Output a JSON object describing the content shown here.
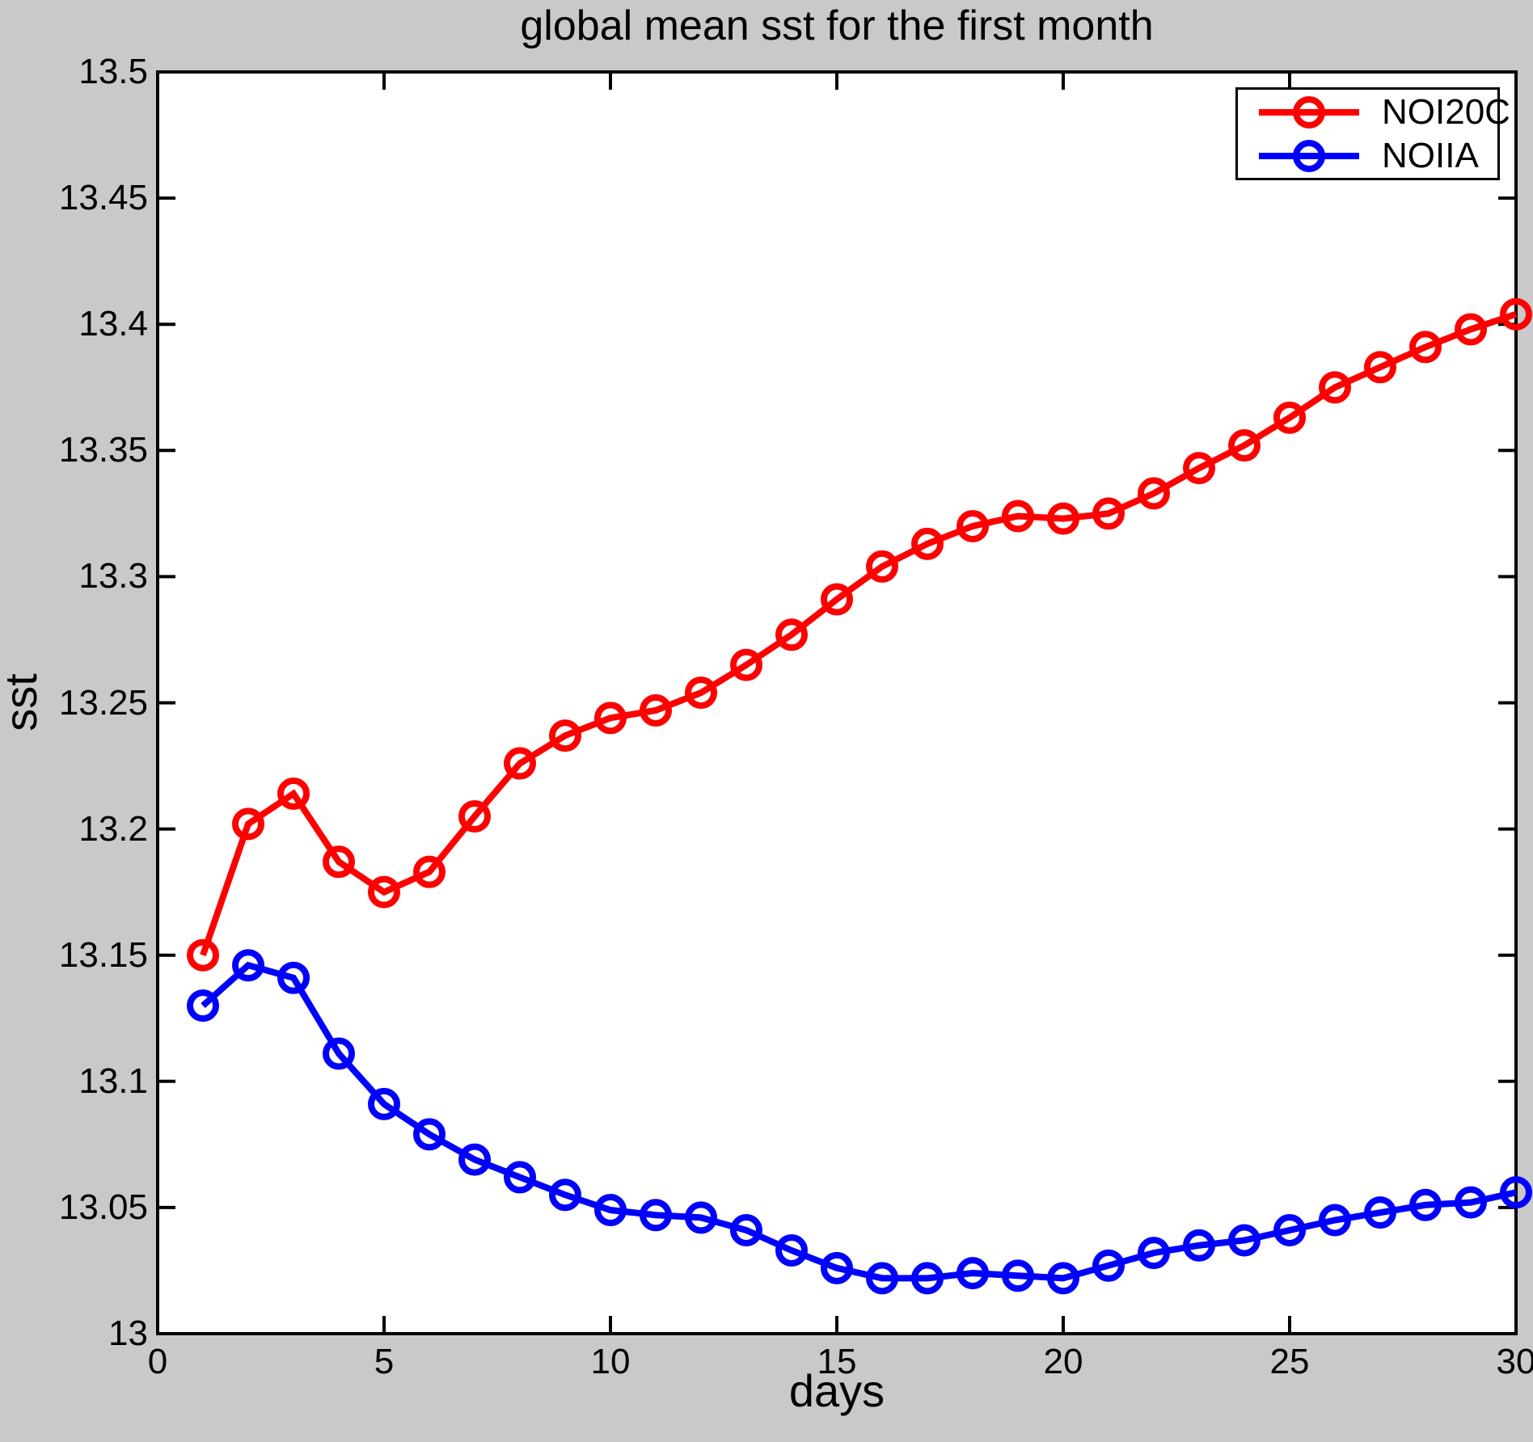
{
  "figure": {
    "background_color": "#c9c9c9",
    "plot_background_color": "#ffffff",
    "axis_color": "#000000"
  },
  "chart_data": {
    "type": "line",
    "title": "global mean sst for the first month",
    "xlabel": "days",
    "ylabel": "sst",
    "xlim": [
      0,
      30
    ],
    "ylim": [
      13,
      13.5
    ],
    "xticks": [
      0,
      5,
      10,
      15,
      20,
      25,
      30
    ],
    "xtick_labels": [
      "0",
      "5",
      "10",
      "15",
      "20",
      "25",
      "30"
    ],
    "yticks": [
      13,
      13.05,
      13.1,
      13.15,
      13.2,
      13.25,
      13.3,
      13.35,
      13.4,
      13.45,
      13.5
    ],
    "ytick_labels": [
      "13",
      "13.05",
      "13.1",
      "13.15",
      "13.2",
      "13.25",
      "13.3",
      "13.35",
      "13.4",
      "13.45",
      "13.5"
    ],
    "grid": false,
    "legend_position": "top-right",
    "marker": "o",
    "x": [
      1,
      2,
      3,
      4,
      5,
      6,
      7,
      8,
      9,
      10,
      11,
      12,
      13,
      14,
      15,
      16,
      17,
      18,
      19,
      20,
      21,
      22,
      23,
      24,
      25,
      26,
      27,
      28,
      29,
      30
    ],
    "series": [
      {
        "name": "NOI20C",
        "color": "#ff0000",
        "values": [
          13.15,
          13.202,
          13.214,
          13.187,
          13.175,
          13.183,
          13.205,
          13.226,
          13.237,
          13.244,
          13.247,
          13.254,
          13.265,
          13.277,
          13.291,
          13.304,
          13.313,
          13.32,
          13.324,
          13.323,
          13.325,
          13.333,
          13.343,
          13.352,
          13.363,
          13.375,
          13.383,
          13.391,
          13.398,
          13.404
        ]
      },
      {
        "name": "NOIIA",
        "color": "#0000ff",
        "values": [
          13.13,
          13.146,
          13.141,
          13.111,
          13.091,
          13.079,
          13.069,
          13.062,
          13.055,
          13.049,
          13.047,
          13.046,
          13.041,
          13.033,
          13.026,
          13.022,
          13.022,
          13.024,
          13.023,
          13.022,
          13.027,
          13.032,
          13.035,
          13.037,
          13.041,
          13.045,
          13.048,
          13.051,
          13.052,
          13.056
        ]
      }
    ]
  }
}
